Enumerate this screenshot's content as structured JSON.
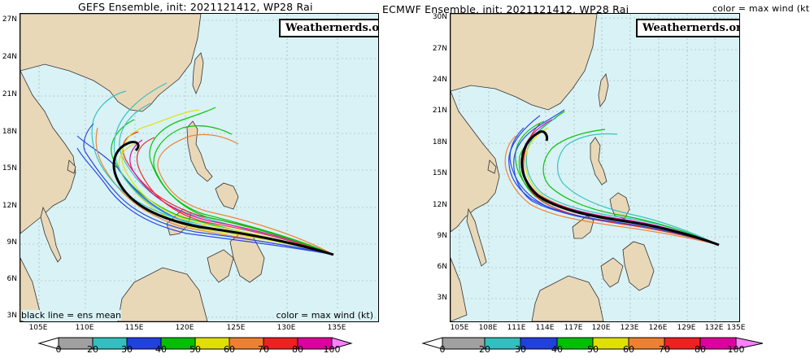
{
  "left": {
    "title": "GEFS Ensemble, init: 2021121412, WP28 Rai",
    "credit": "Weathernerds.org",
    "note_left": "black line = ens mean",
    "note_right": "color = max wind (kt)",
    "lat_labels": [
      "27N",
      "24N",
      "21N",
      "18N",
      "15N",
      "12N",
      "9N",
      "6N",
      "3N"
    ],
    "lon_labels": [
      "105E",
      "110E",
      "115E",
      "120E",
      "125E",
      "130E",
      "135E"
    ],
    "colorbar_ticks": [
      "0",
      "20",
      "30",
      "40",
      "50",
      "60",
      "70",
      "80",
      "100"
    ]
  },
  "right": {
    "title": "ECMWF Ensemble, init: 2021121412, WP28 Rai",
    "credit": "Weathernerds.org",
    "note_right": "color = max wind (kt)",
    "lat_labels": [
      "30N",
      "27N",
      "24N",
      "21N",
      "18N",
      "15N",
      "12N",
      "9N",
      "6N",
      "3N"
    ],
    "lon_labels": [
      "105E",
      "108E",
      "111E",
      "114E",
      "117E",
      "120E",
      "123E",
      "126E",
      "129E",
      "132E",
      "135E"
    ],
    "colorbar_ticks": [
      "0",
      "20",
      "30",
      "40",
      "50",
      "60",
      "70",
      "80",
      "100"
    ]
  },
  "colorbar_colors": [
    "#a0a0a0",
    "#30c0c0",
    "#2040e0",
    "#00c000",
    "#e0e000",
    "#f08030",
    "#f02020",
    "#e000a0",
    "#ff80ff"
  ],
  "colors": {
    "ocean": "#d9f2f5",
    "land": "#e8d8b8",
    "mean_track": "#000000"
  }
}
